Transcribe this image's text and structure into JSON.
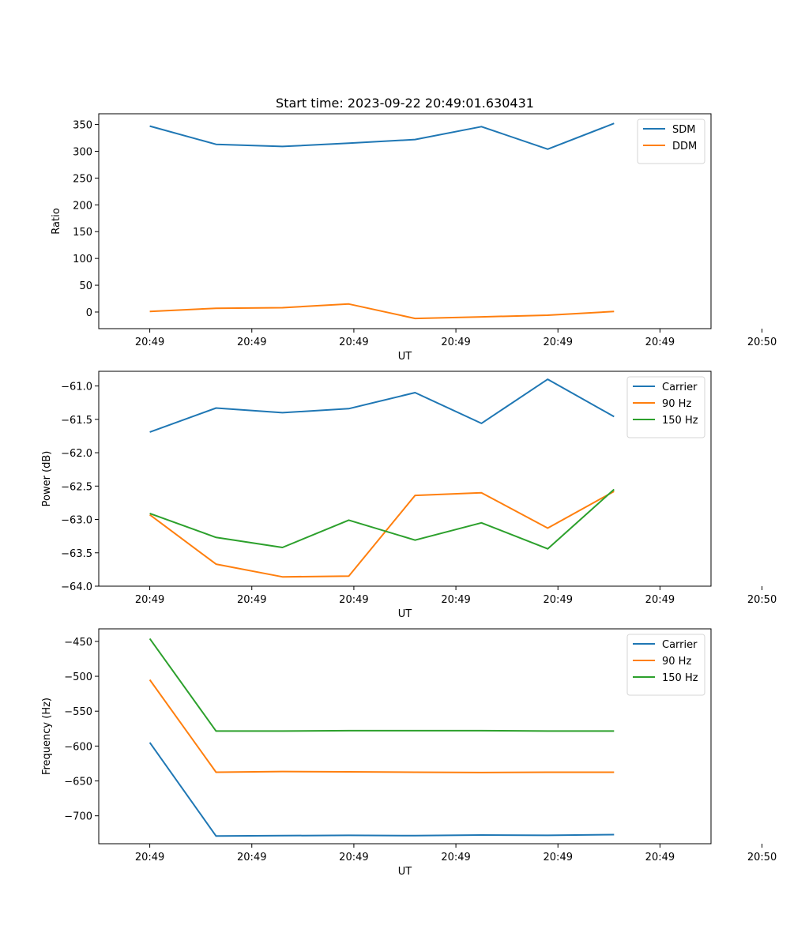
{
  "chart_data": [
    {
      "type": "line",
      "title": "Start time: 2023-09-22 20:49:01.630431",
      "xlabel": "UT",
      "ylabel": "Ratio",
      "xlim": [
        -0.5,
        5.5
      ],
      "x": [
        0,
        0.65,
        1.3,
        1.95,
        2.6,
        3.25,
        3.9,
        4.55
      ],
      "xticks": [
        {
          "value": 0,
          "label": "20:49"
        },
        {
          "value": 1,
          "label": "20:49"
        },
        {
          "value": 2,
          "label": "20:49"
        },
        {
          "value": 3,
          "label": "20:49"
        },
        {
          "value": 4,
          "label": "20:49"
        },
        {
          "value": 5,
          "label": "20:49"
        },
        {
          "value": 6,
          "label": "20:50"
        }
      ],
      "ylim": [
        -31,
        370
      ],
      "yticks": [
        0,
        50,
        100,
        150,
        200,
        250,
        300,
        350
      ],
      "legend_position": "top-right",
      "series": [
        {
          "name": "SDM",
          "color": "#1f77b4",
          "values": [
            347,
            313,
            309,
            315,
            322,
            346,
            304,
            352
          ]
        },
        {
          "name": "DDM",
          "color": "#ff7f0e",
          "values": [
            1,
            7,
            8,
            15,
            -12,
            -9,
            -6,
            1
          ]
        }
      ]
    },
    {
      "type": "line",
      "title": "",
      "xlabel": "UT",
      "ylabel": "Power (dB)",
      "xlim": [
        -0.5,
        5.5
      ],
      "x": [
        0,
        0.65,
        1.3,
        1.95,
        2.6,
        3.25,
        3.9,
        4.55
      ],
      "xticks": [
        {
          "value": 0,
          "label": "20:49"
        },
        {
          "value": 1,
          "label": "20:49"
        },
        {
          "value": 2,
          "label": "20:49"
        },
        {
          "value": 3,
          "label": "20:49"
        },
        {
          "value": 4,
          "label": "20:49"
        },
        {
          "value": 5,
          "label": "20:49"
        },
        {
          "value": 6,
          "label": "20:50"
        }
      ],
      "ylim": [
        -64.0,
        -60.78
      ],
      "yticks": [
        -64.0,
        -63.5,
        -63.0,
        -62.5,
        -62.0,
        -61.5,
        -61.0
      ],
      "ytick_labels": [
        "−64.0",
        "−63.5",
        "−63.0",
        "−62.5",
        "−62.0",
        "−61.5",
        "−61.0"
      ],
      "legend_position": "top-right",
      "series": [
        {
          "name": "Carrier",
          "color": "#1f77b4",
          "values": [
            -61.69,
            -61.33,
            -61.4,
            -61.34,
            -61.1,
            -61.56,
            -60.9,
            -61.46
          ]
        },
        {
          "name": "90 Hz",
          "color": "#ff7f0e",
          "values": [
            -62.93,
            -63.67,
            -63.86,
            -63.85,
            -62.64,
            -62.6,
            -63.13,
            -62.58
          ]
        },
        {
          "name": "150 Hz",
          "color": "#2ca02c",
          "values": [
            -62.91,
            -63.27,
            -63.42,
            -63.01,
            -63.31,
            -63.05,
            -63.44,
            -62.55
          ]
        }
      ]
    },
    {
      "type": "line",
      "title": "",
      "xlabel": "UT",
      "ylabel": "Frequency (Hz)",
      "xlim": [
        -0.5,
        5.5
      ],
      "x": [
        0,
        0.65,
        1.3,
        1.95,
        2.6,
        3.25,
        3.9,
        4.55
      ],
      "xticks": [
        {
          "value": 0,
          "label": "20:49"
        },
        {
          "value": 1,
          "label": "20:49"
        },
        {
          "value": 2,
          "label": "20:49"
        },
        {
          "value": 3,
          "label": "20:49"
        },
        {
          "value": 4,
          "label": "20:49"
        },
        {
          "value": 5,
          "label": "20:49"
        },
        {
          "value": 6,
          "label": "20:50"
        }
      ],
      "ylim": [
        -740,
        -432
      ],
      "yticks": [
        -700,
        -650,
        -600,
        -550,
        -500,
        -450
      ],
      "ytick_labels": [
        "−700",
        "−650",
        "−600",
        "−550",
        "−500",
        "−450"
      ],
      "legend_position": "top-right",
      "series": [
        {
          "name": "Carrier",
          "color": "#1f77b4",
          "values": [
            -595,
            -729,
            -728.5,
            -728,
            -728.5,
            -727.5,
            -728,
            -727
          ]
        },
        {
          "name": "90 Hz",
          "color": "#ff7f0e",
          "values": [
            -505,
            -637.5,
            -636.5,
            -637,
            -637.5,
            -638,
            -637.5,
            -637.5
          ]
        },
        {
          "name": "150 Hz",
          "color": "#2ca02c",
          "values": [
            -446,
            -578.5,
            -578.5,
            -578,
            -578,
            -578,
            -578.5,
            -578.5
          ]
        }
      ]
    }
  ]
}
